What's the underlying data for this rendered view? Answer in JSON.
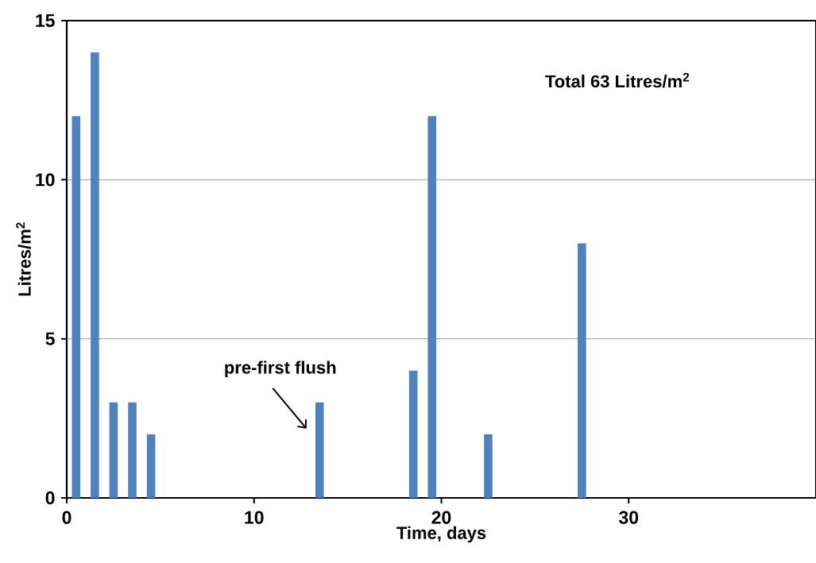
{
  "chart_data": {
    "type": "bar",
    "xlabel": "Time, days",
    "ylabel": "Litres/m$^{2}$",
    "x": [
      0.5,
      1.5,
      2.5,
      3.5,
      4.5,
      13.5,
      18.5,
      19.5,
      22.5,
      27.5
    ],
    "values": [
      12,
      14,
      3,
      3,
      2,
      3,
      4,
      12,
      2,
      8
    ],
    "color": "#4f81bd",
    "xlim": [
      0,
      40
    ],
    "xticks": [
      0,
      10,
      20,
      30
    ],
    "ylim": [
      0,
      15
    ],
    "yticks": [
      0,
      5,
      10,
      15
    ],
    "grid": "y",
    "annotations": [
      "pre-first flush",
      "Total 63 Litres/m$^{2}$"
    ]
  }
}
